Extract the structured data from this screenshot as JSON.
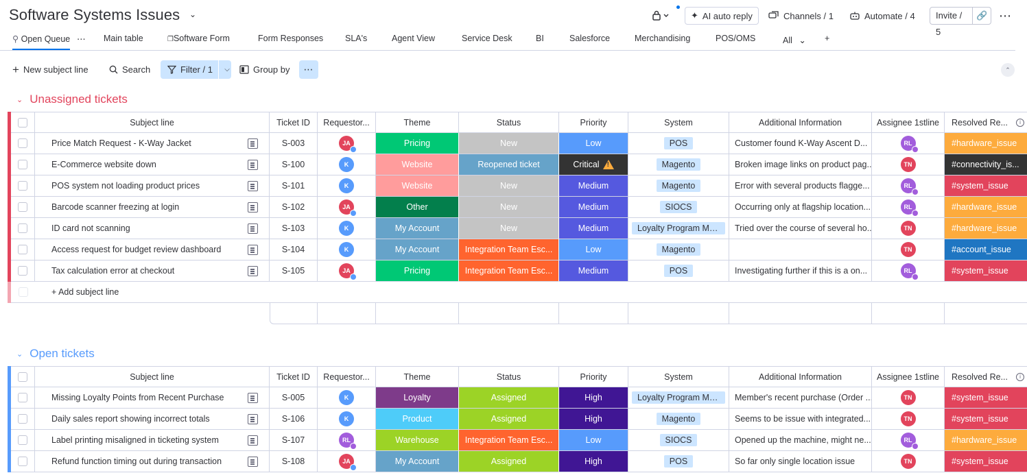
{
  "header": {
    "title": "Software Systems Issues",
    "ai_auto_reply": "AI auto reply",
    "channels": "Channels / 1",
    "automate": "Automate / 4",
    "invite": "Invite / 5"
  },
  "tabs": [
    "Open Queue",
    "Main table",
    "Software Form",
    "Form Responses",
    "SLA's",
    "Agent View",
    "Service Desk",
    "BI",
    "Salesforce",
    "Merchandising",
    "POS/OMS",
    "All",
    "+"
  ],
  "toolbar": {
    "new_item": "New subject line",
    "search": "Search",
    "filter": "Filter / 1",
    "group_by": "Group by"
  },
  "columns": [
    "Subject line",
    "Ticket ID",
    "Requestor...",
    "Theme",
    "Status",
    "Priority",
    "System",
    "Additional Information",
    "Assignee 1stline",
    "Resolved Re..."
  ],
  "colors": {
    "Pricing": "#00c875",
    "Website": "#ff9c9c",
    "Other": "#037f4c",
    "My Account": "#66a3c9",
    "Loyalty": "#7e3b8a",
    "Product": "#4eccf9",
    "Warehouse": "#9cd326",
    "New": "#c4c4c4",
    "Reopened ticket": "#66a3c9",
    "Integration Team Esc...": "#ff642e",
    "Assigned": "#9cd326",
    "Low": "#579bfc",
    "Critical": "#333333",
    "Medium": "#5559df",
    "High": "#401694",
    "#hardware_issue": "#fdab3d",
    "#connectivity_is...": "#333333",
    "#system_issue": "#e2445c",
    "#account_issue": "#1f76c2"
  },
  "groups": [
    {
      "title": "Unassigned tickets",
      "color": "red",
      "add_label": "+ Add subject line",
      "rows": [
        {
          "subject": "Price Match Request - K-Way Jacket",
          "tid": "S-003",
          "req": "JA",
          "theme": "Pricing",
          "status": "New",
          "priority": "Low",
          "system": "POS",
          "info": "Customer found K-Way Ascent D...",
          "assignee": "RL",
          "resolved": "#hardware_issue"
        },
        {
          "subject": "E-Commerce website down",
          "tid": "S-100",
          "req": "K",
          "theme": "Website",
          "status": "Reopened ticket",
          "priority": "Critical",
          "system": "Magento",
          "info": "Broken image links on product pag...",
          "assignee": "TN",
          "resolved": "#connectivity_is..."
        },
        {
          "subject": "POS system not loading product prices",
          "tid": "S-101",
          "req": "K",
          "theme": "Website",
          "status": "New",
          "priority": "Medium",
          "system": "Magento",
          "info": "Error with several products flagge...",
          "assignee": "RL",
          "resolved": "#system_issue"
        },
        {
          "subject": "Barcode scanner freezing at login",
          "tid": "S-102",
          "req": "JA",
          "theme": "Other",
          "status": "New",
          "priority": "Medium",
          "system": "SIOCS",
          "info": "Occurring only at flagship location...",
          "assignee": "RL",
          "resolved": "#hardware_issue"
        },
        {
          "subject": "ID card not scanning",
          "tid": "S-103",
          "req": "K",
          "theme": "My Account",
          "status": "New",
          "priority": "Medium",
          "system": "Loyalty Program Man...",
          "info": "Tried over the course of several ho...",
          "assignee": "TN",
          "resolved": "#hardware_issue"
        },
        {
          "subject": "Access request for budget review dashboard",
          "tid": "S-104",
          "req": "K",
          "theme": "My Account",
          "status": "Integration Team Esc...",
          "priority": "Low",
          "system": "Magento",
          "info": "",
          "assignee": "TN",
          "resolved": "#account_issue"
        },
        {
          "subject": "Tax calculation error at checkout",
          "tid": "S-105",
          "req": "JA",
          "theme": "Pricing",
          "status": "Integration Team Esc...",
          "priority": "Medium",
          "system": "POS",
          "info": "Investigating further if this is a on...",
          "assignee": "RL",
          "resolved": "#system_issue"
        }
      ]
    },
    {
      "title": "Open tickets",
      "color": "blue",
      "rows": [
        {
          "subject": "Missing Loyalty Points from Recent Purchase",
          "tid": "S-005",
          "req": "K",
          "theme": "Loyalty",
          "status": "Assigned",
          "priority": "High",
          "system": "Loyalty Program Man...",
          "info": "Member's recent purchase (Order ...",
          "assignee": "TN",
          "resolved": "#system_issue"
        },
        {
          "subject": "Daily sales report showing incorrect totals",
          "tid": "S-106",
          "req": "K",
          "theme": "Product",
          "status": "Assigned",
          "priority": "High",
          "system": "Magento",
          "info": "Seems to be issue with integrated...",
          "assignee": "TN",
          "resolved": "#system_issue"
        },
        {
          "subject": "Label printing misaligned in ticketing system",
          "tid": "S-107",
          "req": "RL",
          "theme": "Warehouse",
          "status": "Integration Team Esc...",
          "priority": "Low",
          "system": "SIOCS",
          "info": "Opened up the machine, might ne...",
          "assignee": "RL",
          "resolved": "#hardware_issue"
        },
        {
          "subject": "Refund function timing out during transaction",
          "tid": "S-108",
          "req": "JA",
          "theme": "My Account",
          "status": "Assigned",
          "priority": "High",
          "system": "POS",
          "info": "So far only single location issue",
          "assignee": "TN",
          "resolved": "#system_issue"
        }
      ]
    }
  ]
}
